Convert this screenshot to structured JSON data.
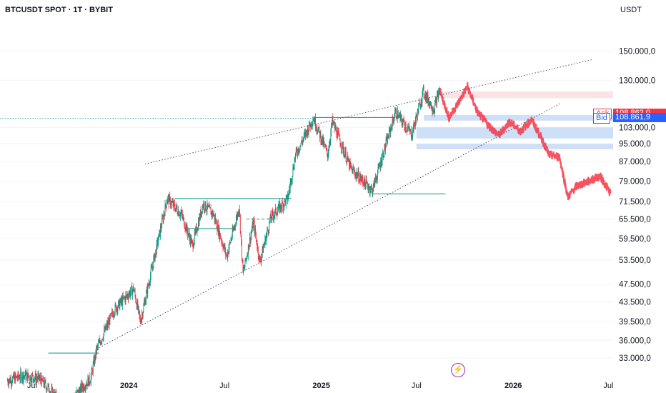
{
  "header": {
    "symbol_line": "BTCUSDT SPOT · 1T · BYBIT",
    "currency": "USDT"
  },
  "quotes": {
    "ask_label": "Ask",
    "ask_value": "108.862,0",
    "bid_label": "Bid",
    "bid_value": "108.861,9"
  },
  "icons": {
    "flash": "lightning-bolt-icon"
  },
  "colors": {
    "up": "#089981",
    "down": "#f23645",
    "projection": "#f23645",
    "level_line": "#089981",
    "ask_tag": "#f23645",
    "bid_tag": "#2962ff",
    "demand_zone": "#c9dcf7",
    "supply_zone": "#fbe0e2"
  },
  "chart_data": {
    "type": "candlestick",
    "scale": "log",
    "x_tick_labels": [
      "Jul",
      "2024",
      "Jul",
      "2025",
      "Jul",
      "2026",
      "Jul"
    ],
    "y_tick_labels": [
      "150.000,0",
      "130.000,0",
      "103.000,0",
      "95.000,0",
      "87.000,0",
      "79.000,0",
      "71.500,0",
      "65.500,0",
      "59.500,0",
      "53.500,0",
      "47.500,0",
      "43.500,0",
      "39.500,0",
      "36.000,0",
      "33.000,0"
    ],
    "y_ticks": [
      150000,
      130000,
      103000,
      95000,
      87000,
      79000,
      71500,
      65500,
      59500,
      53500,
      47500,
      43500,
      39500,
      36000,
      33000
    ],
    "x_tick_dates": [
      "2023-07-01",
      "2024-01-01",
      "2024-07-01",
      "2025-01-01",
      "2025-07-01",
      "2026-01-01",
      "2026-07-01"
    ],
    "ylim": [
      30000,
      175000
    ],
    "xlim": [
      "2023-05-01",
      "2026-07-10"
    ],
    "ask": 108862.0,
    "bid": 108861.9,
    "price_path": [
      [
        "2023-05-15",
        29500
      ],
      [
        "2023-06-15",
        30300
      ],
      [
        "2023-07-15",
        29800
      ],
      [
        "2023-09-01",
        26000
      ],
      [
        "2023-10-20",
        29800
      ],
      [
        "2023-11-01",
        34500
      ],
      [
        "2023-12-05",
        42000
      ],
      [
        "2024-01-10",
        46500
      ],
      [
        "2024-01-23",
        39500
      ],
      [
        "2024-02-15",
        52000
      ],
      [
        "2024-03-14",
        72500
      ],
      [
        "2024-04-10",
        67000
      ],
      [
        "2024-05-01",
        57500
      ],
      [
        "2024-05-21",
        70500
      ],
      [
        "2024-06-10",
        67000
      ],
      [
        "2024-07-05",
        54500
      ],
      [
        "2024-07-29",
        69500
      ],
      [
        "2024-08-05",
        50000
      ],
      [
        "2024-08-25",
        64500
      ],
      [
        "2024-09-06",
        53000
      ],
      [
        "2024-09-27",
        66000
      ],
      [
        "2024-10-29",
        72500
      ],
      [
        "2024-11-13",
        90000
      ],
      [
        "2024-12-17",
        108000
      ],
      [
        "2025-01-13",
        90000
      ],
      [
        "2025-01-22",
        106000
      ],
      [
        "2025-02-26",
        84000
      ],
      [
        "2025-04-08",
        75500
      ],
      [
        "2025-05-22",
        111000
      ],
      [
        "2025-06-22",
        99500
      ],
      [
        "2025-07-14",
        123000
      ],
      [
        "2025-08-03",
        112500
      ],
      [
        "2025-08-14",
        124000
      ]
    ],
    "projection_path": [
      [
        "2025-08-14",
        124000
      ],
      [
        "2025-09-01",
        108000
      ],
      [
        "2025-09-20",
        117000
      ],
      [
        "2025-10-06",
        126000
      ],
      [
        "2025-10-25",
        111000
      ],
      [
        "2025-11-15",
        104000
      ],
      [
        "2025-12-05",
        99000
      ],
      [
        "2025-12-25",
        106000
      ],
      [
        "2026-01-15",
        101000
      ],
      [
        "2026-02-05",
        107000
      ],
      [
        "2026-02-25",
        97000
      ],
      [
        "2026-03-10",
        90000
      ],
      [
        "2026-03-30",
        89000
      ],
      [
        "2026-04-15",
        73000
      ],
      [
        "2026-05-01",
        77000
      ],
      [
        "2026-05-25",
        79000
      ],
      [
        "2026-06-15",
        81000
      ],
      [
        "2026-07-05",
        74500
      ]
    ],
    "horizontal_levels": [
      {
        "y": 33800,
        "from": "2023-08-01",
        "to": "2023-11-05"
      },
      {
        "y": 72500,
        "from": "2024-03-28",
        "to": "2024-11-05"
      },
      {
        "y": 62500,
        "from": "2024-04-15",
        "to": "2024-07-20"
      },
      {
        "y": 65500,
        "from": "2024-08-12",
        "to": "2024-10-10",
        "dashed": true
      },
      {
        "y": 108200,
        "from": "2024-12-17",
        "to": "2025-05-20"
      },
      {
        "y": 74200,
        "from": "2025-04-08",
        "to": "2025-08-25"
      },
      {
        "y": 107700,
        "from": "2023-05-01",
        "to": "2024-12-17",
        "dotted": true
      }
    ],
    "trend_lines": [
      {
        "from": [
          "2024-02-01",
          86000
        ],
        "to": [
          "2026-06-01",
          144000
        ]
      },
      {
        "from": [
          "2023-11-01",
          34500
        ],
        "to": [
          "2026-04-01",
          116000
        ]
      }
    ],
    "zones": [
      {
        "from": "2025-08-10",
        "to": "2026-07-10",
        "low": 119000,
        "high": 123000,
        "kind": "supply"
      },
      {
        "from": "2025-07-15",
        "to": "2026-07-10",
        "low": 106500,
        "high": 109500,
        "kind": "demand"
      },
      {
        "from": "2025-07-01",
        "to": "2026-07-10",
        "low": 97500,
        "high": 103000,
        "kind": "demand"
      },
      {
        "from": "2025-07-01",
        "to": "2026-07-10",
        "low": 92500,
        "high": 95000,
        "kind": "demand"
      }
    ]
  }
}
